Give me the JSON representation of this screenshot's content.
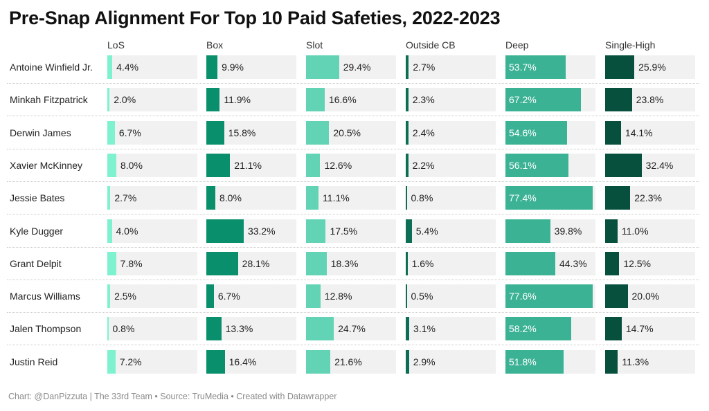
{
  "title": "Pre-Snap Alignment For Top 10 Paid Safeties, 2022-2023",
  "footer": "Chart: @DanPizzuta | The 33rd Team • Source: TruMedia • Created with Datawrapper",
  "chart_data": {
    "type": "bar",
    "variant": "small-multiples-table",
    "unit": "%",
    "xlim": [
      0,
      80
    ],
    "players": [
      "Antoine Winfield Jr.",
      "Minkah Fitzpatrick",
      "Derwin James",
      "Xavier McKinney",
      "Jessie Bates",
      "Kyle Dugger",
      "Grant Delpit",
      "Marcus Williams",
      "Jalen Thompson",
      "Justin Reid"
    ],
    "columns": [
      {
        "name": "LoS",
        "color": "#7ef2cf",
        "labels": [
          "4.4%",
          "2.0%",
          "6.7%",
          "8.0%",
          "2.7%",
          "4.0%",
          "7.8%",
          "2.5%",
          "0.8%",
          "7.2%"
        ],
        "values": [
          4.4,
          2.0,
          6.7,
          8.0,
          2.7,
          4.0,
          7.8,
          2.5,
          0.8,
          7.2
        ]
      },
      {
        "name": "Box",
        "color": "#0a8f6c",
        "labels": [
          "9.9%",
          "11.9%",
          "15.8%",
          "21.1%",
          "8.0%",
          "33.2%",
          "28.1%",
          "6.7%",
          "13.3%",
          "16.4%"
        ],
        "values": [
          9.9,
          11.9,
          15.8,
          21.1,
          8.0,
          33.2,
          28.1,
          6.7,
          13.3,
          16.4
        ]
      },
      {
        "name": "Slot",
        "color": "#62d3b4",
        "labels": [
          "29.4%",
          "16.6%",
          "20.5%",
          "12.6%",
          "11.1%",
          "17.5%",
          "18.3%",
          "12.8%",
          "24.7%",
          "21.6%"
        ],
        "values": [
          29.4,
          16.6,
          20.5,
          12.6,
          11.1,
          17.5,
          18.3,
          12.8,
          24.7,
          21.6
        ]
      },
      {
        "name": "Outside CB",
        "color": "#0d6e55",
        "labels": [
          "2.7%",
          "2.3%",
          "2.4%",
          "2.2%",
          "0.8%",
          "5.4%",
          "1.6%",
          "0.5%",
          "3.1%",
          "2.9%"
        ],
        "values": [
          2.7,
          2.3,
          2.4,
          2.2,
          0.8,
          5.4,
          1.6,
          0.5,
          3.1,
          2.9
        ]
      },
      {
        "name": "Deep",
        "color": "#3cb295",
        "labels": [
          "53.7%",
          "67.2%",
          "54.6%",
          "56.1%",
          "77.4%",
          "39.8%",
          "44.3%",
          "77.6%",
          "58.2%",
          "51.8%"
        ],
        "values": [
          53.7,
          67.2,
          54.6,
          56.1,
          77.4,
          39.8,
          44.3,
          77.6,
          58.2,
          51.8
        ]
      },
      {
        "name": "Single-High",
        "color": "#06503d",
        "labels": [
          "25.9%",
          "23.8%",
          "14.1%",
          "32.4%",
          "22.3%",
          "11.0%",
          "12.5%",
          "20.0%",
          "14.7%",
          "11.3%"
        ],
        "values": [
          25.9,
          23.8,
          14.1,
          32.4,
          22.3,
          11.0,
          12.5,
          20.0,
          14.7,
          11.3
        ]
      }
    ]
  }
}
